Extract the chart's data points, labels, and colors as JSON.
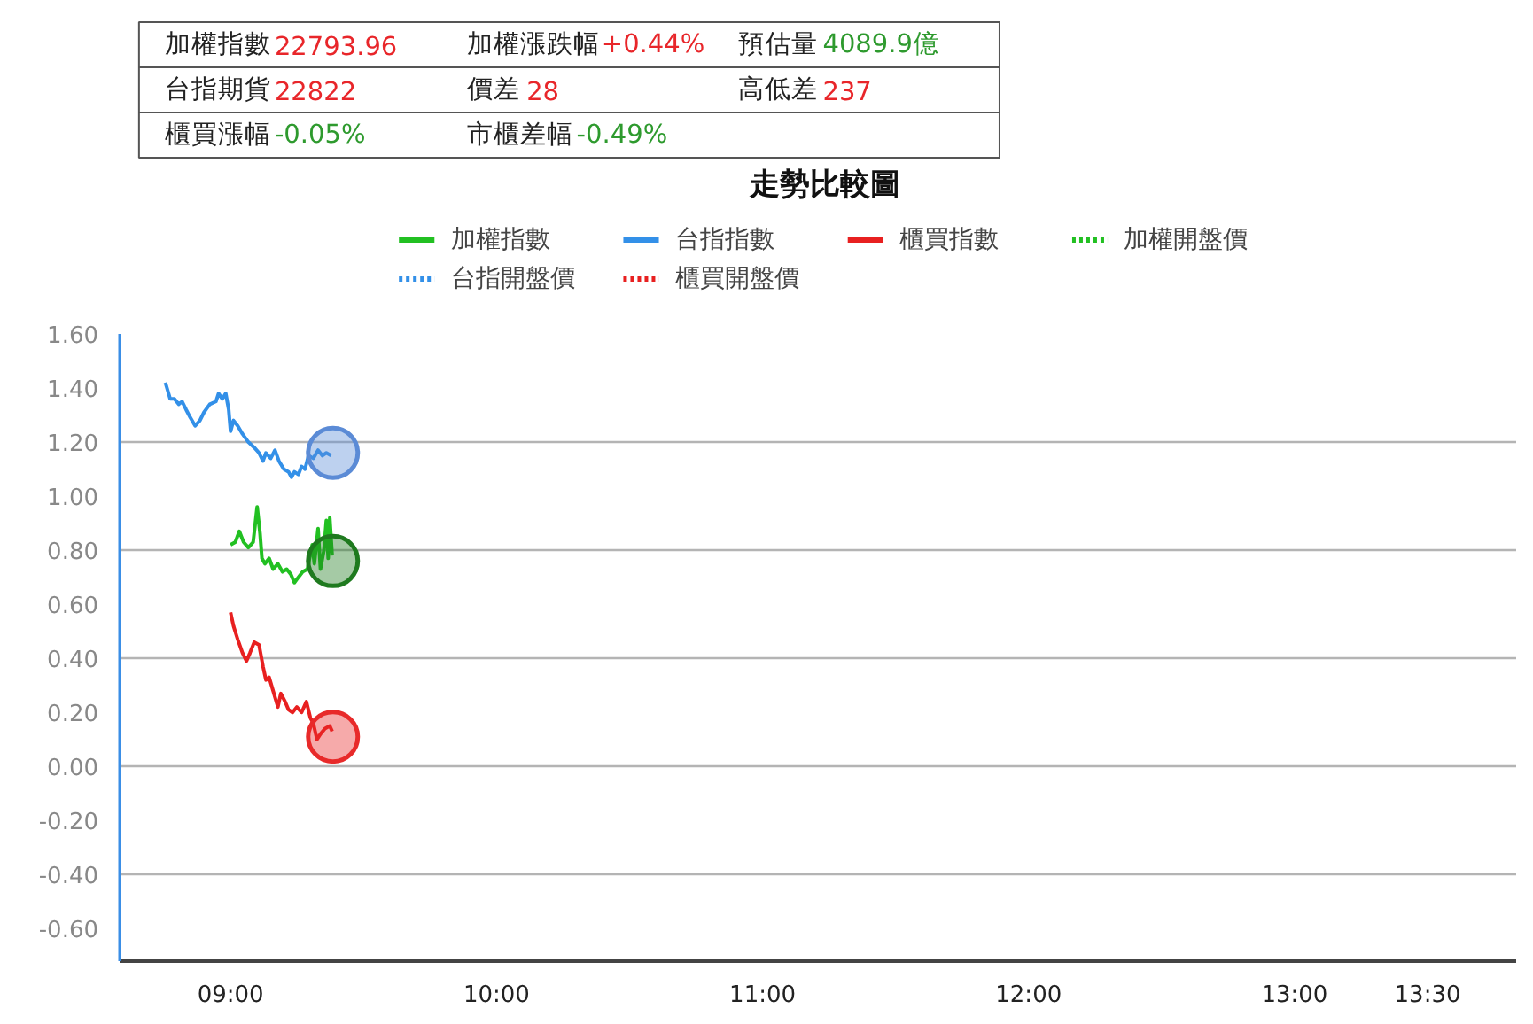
{
  "chart_data": [
    {
      "type": "other",
      "annotations": [
        "加權指數",
        "22793.96",
        "加權漲跌幅",
        "+0.44%",
        "預估量",
        "4089.9億",
        "台指期貨",
        "22822",
        "價差",
        "28",
        "高低差",
        "237",
        "櫃買漲幅",
        "-0.05%",
        "市櫃差幅",
        "-0.49%"
      ],
      "colors": [
        "#222222",
        "#e8262a",
        "#222222",
        "#e8262a",
        "#222222",
        "#2e9a2e",
        "#222222",
        "#e8262a",
        "#222222",
        "#e8262a",
        "#222222",
        "#e8262a",
        "#222222",
        "#2e9a2e",
        "#222222",
        "#2e9a2e"
      ]
    },
    {
      "type": "line",
      "title": "走勢比較圖",
      "legend": "top",
      "grid": "y",
      "xlim": [
        8.583,
        13.833
      ],
      "xticks": [
        {
          "value": 9,
          "label": "09:00"
        },
        {
          "value": 10,
          "label": "10:00"
        },
        {
          "value": 11,
          "label": "11:00"
        },
        {
          "value": 12,
          "label": "12:00"
        },
        {
          "value": 13,
          "label": "13:00"
        },
        {
          "value": 13.5,
          "label": "13:30"
        }
      ],
      "ylim": [
        -0.72,
        1.6
      ],
      "yticks": [
        {
          "value": -0.6,
          "label": "-0.60"
        },
        {
          "value": -0.4,
          "label": "-0.40"
        },
        {
          "value": -0.2,
          "label": "-0.20"
        },
        {
          "value": 0,
          "label": "0.00"
        },
        {
          "value": 0.2,
          "label": "0.20"
        },
        {
          "value": 0.4,
          "label": "0.40"
        },
        {
          "value": 0.6,
          "label": "0.60"
        },
        {
          "value": 0.8,
          "label": "0.80"
        },
        {
          "value": 1.0,
          "label": "1.00"
        },
        {
          "value": 1.2,
          "label": "1.20"
        },
        {
          "value": 1.4,
          "label": "1.40"
        },
        {
          "value": 1.6,
          "label": "1.60"
        }
      ],
      "series": [
        {
          "name": "加權指數",
          "color": "#22c022",
          "x": [
            9.0,
            9.018,
            9.033,
            9.049,
            9.067,
            9.085,
            9.1,
            9.111,
            9.118,
            9.129,
            9.145,
            9.16,
            9.178,
            9.195,
            9.211,
            9.227,
            9.24,
            9.255,
            9.271,
            9.289,
            9.307,
            9.315,
            9.329,
            9.338,
            9.351,
            9.36,
            9.367,
            9.373,
            9.382
          ],
          "values": [
            0.82,
            0.83,
            0.87,
            0.83,
            0.81,
            0.83,
            0.96,
            0.86,
            0.77,
            0.75,
            0.77,
            0.73,
            0.75,
            0.72,
            0.73,
            0.71,
            0.68,
            0.7,
            0.72,
            0.73,
            0.82,
            0.75,
            0.88,
            0.73,
            0.8,
            0.91,
            0.77,
            0.92,
            0.78
          ]
        },
        {
          "name": "台指指數",
          "color": "#3390e8",
          "x": [
            8.755,
            8.773,
            8.789,
            8.805,
            8.818,
            8.833,
            8.849,
            8.867,
            8.885,
            8.9,
            8.922,
            8.945,
            8.955,
            8.969,
            8.982,
            8.993,
            9.0,
            9.011,
            9.027,
            9.045,
            9.067,
            9.089,
            9.107,
            9.122,
            9.133,
            9.151,
            9.167,
            9.182,
            9.2,
            9.218,
            9.229,
            9.24,
            9.255,
            9.267,
            9.28,
            9.293,
            9.311,
            9.329,
            9.345,
            9.36,
            9.378
          ],
          "values": [
            1.42,
            1.36,
            1.36,
            1.34,
            1.35,
            1.32,
            1.29,
            1.26,
            1.28,
            1.31,
            1.34,
            1.35,
            1.38,
            1.36,
            1.38,
            1.32,
            1.24,
            1.28,
            1.26,
            1.23,
            1.2,
            1.18,
            1.16,
            1.13,
            1.16,
            1.14,
            1.17,
            1.13,
            1.1,
            1.09,
            1.07,
            1.09,
            1.08,
            1.11,
            1.1,
            1.15,
            1.14,
            1.17,
            1.15,
            1.16,
            1.15
          ]
        },
        {
          "name": "櫃買指數",
          "color": "#e82020",
          "x": [
            9.0,
            9.011,
            9.027,
            9.045,
            9.06,
            9.073,
            9.089,
            9.107,
            9.122,
            9.133,
            9.145,
            9.16,
            9.178,
            9.189,
            9.205,
            9.218,
            9.233,
            9.249,
            9.267,
            9.285,
            9.3,
            9.311,
            9.325,
            9.338,
            9.355,
            9.373,
            9.382
          ],
          "values": [
            0.57,
            0.52,
            0.47,
            0.42,
            0.39,
            0.42,
            0.46,
            0.45,
            0.37,
            0.32,
            0.33,
            0.28,
            0.22,
            0.27,
            0.24,
            0.21,
            0.2,
            0.22,
            0.2,
            0.24,
            0.18,
            0.16,
            0.1,
            0.12,
            0.14,
            0.15,
            0.13
          ]
        },
        {
          "name": "加權開盤價",
          "color": "#22c022",
          "line_style": "dotted"
        },
        {
          "name": "台指開盤價",
          "color": "#3390e8",
          "line_style": "dotted"
        },
        {
          "name": "櫃買開盤價",
          "color": "#e82020",
          "line_style": "dotted"
        },
        {
          "type": "scatter",
          "color": "#5b8bd6",
          "x": [
            9.385
          ],
          "values": [
            1.16
          ]
        },
        {
          "type": "scatter",
          "color": "#1f7a1f",
          "x": [
            9.385
          ],
          "values": [
            0.76
          ]
        },
        {
          "type": "scatter",
          "color": "#e82a2a",
          "x": [
            9.385
          ],
          "values": [
            0.11
          ]
        }
      ]
    }
  ]
}
